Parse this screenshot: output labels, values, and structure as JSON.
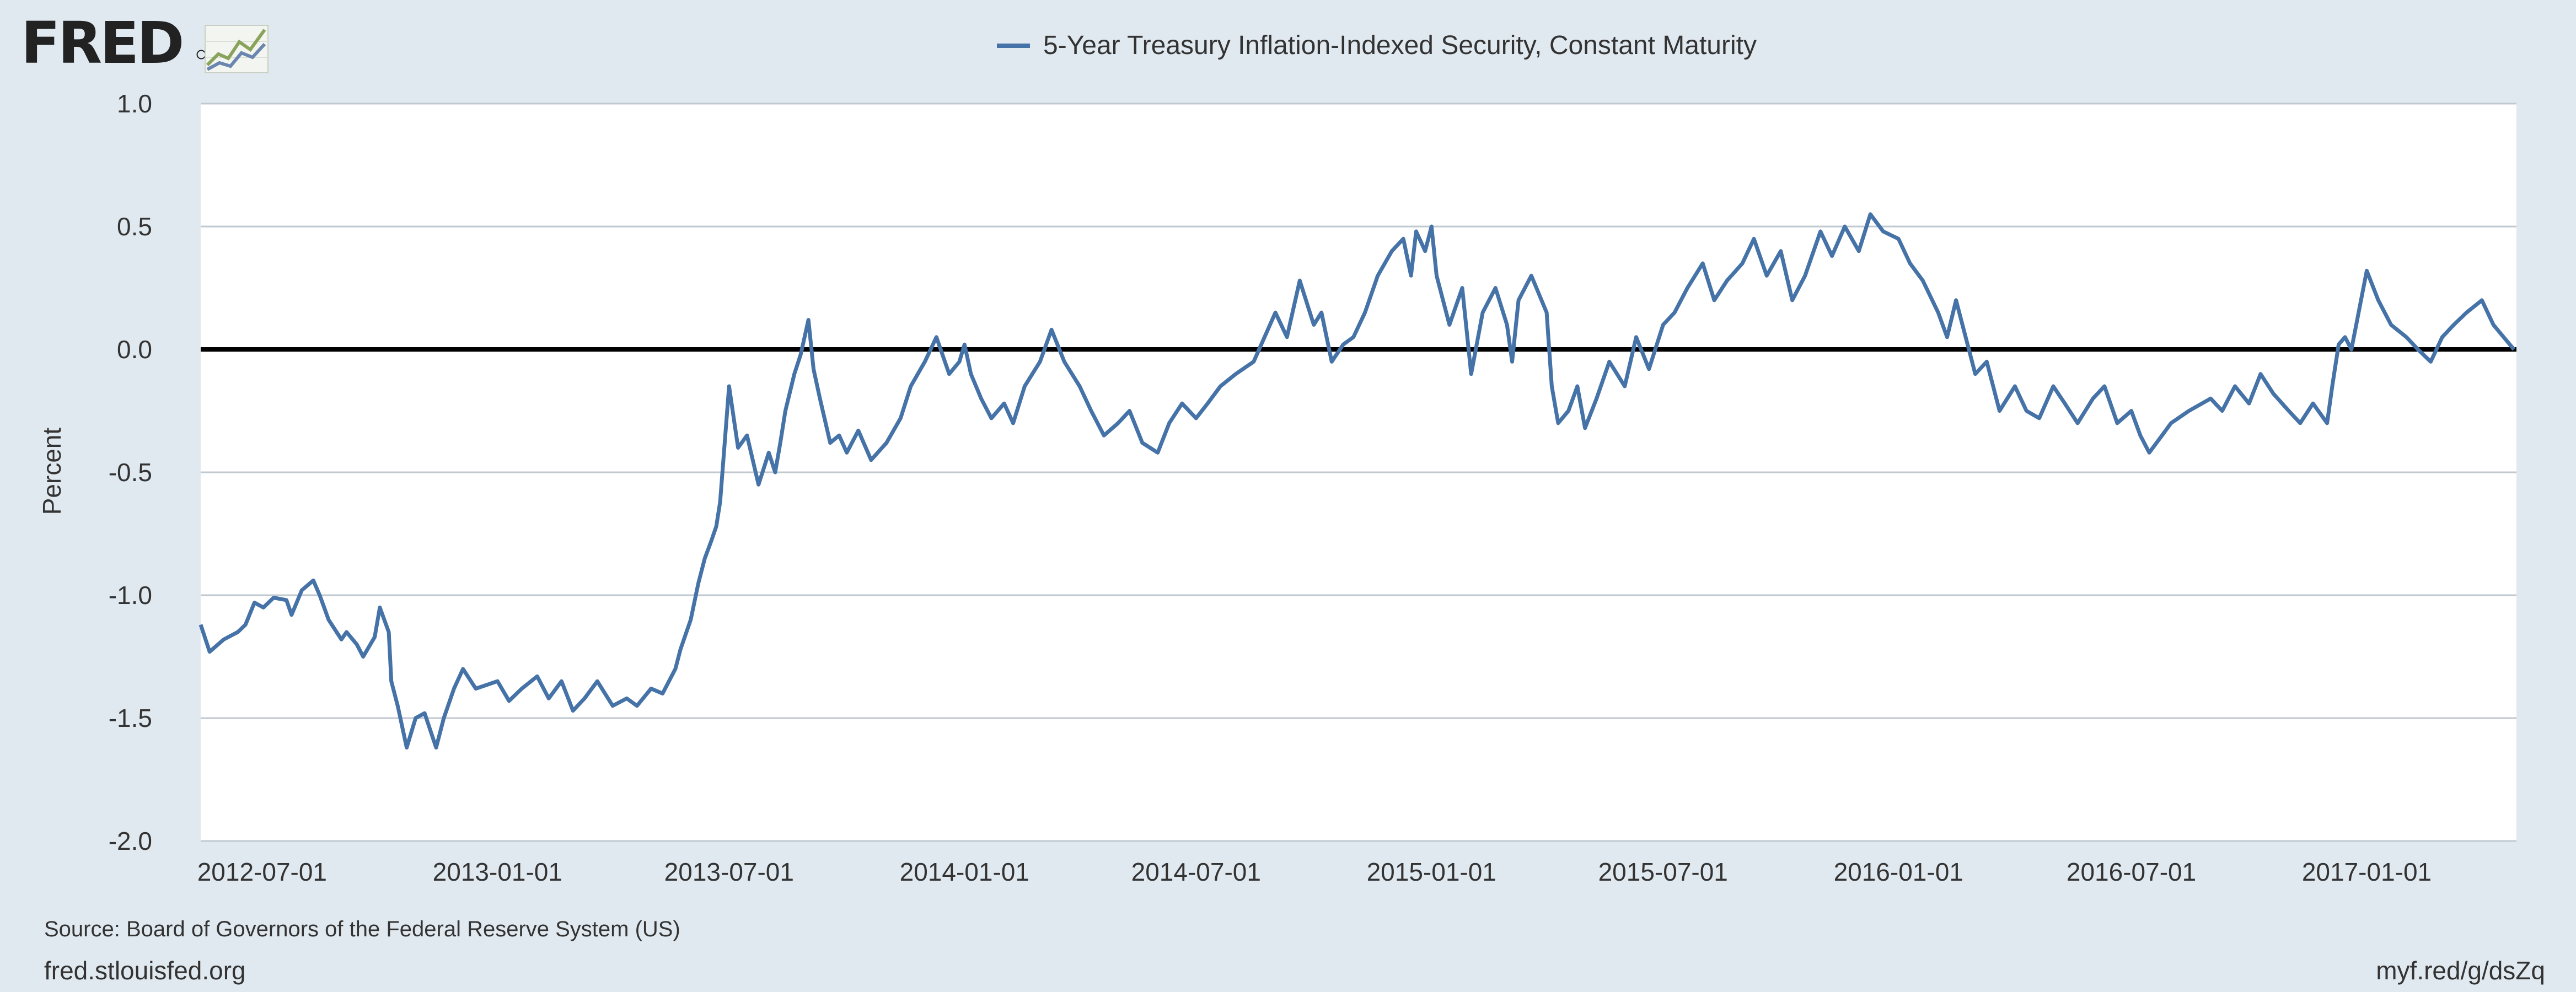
{
  "header": {
    "logo_text": "FRED",
    "legend_label": "5-Year Treasury Inflation-Indexed Security, Constant Maturity"
  },
  "footer": {
    "source": "Source: Board of Governors of the Federal Reserve System (US)",
    "site": "fred.stlouisfed.org",
    "shortlink": "myf.red/g/dsZq"
  },
  "colors": {
    "series": "#4572a7",
    "page_background": "#e1e9f0",
    "plot_background": "#ffffff",
    "gridline": "#c0c8d0",
    "zero_line": "#000000"
  },
  "chart_data": {
    "type": "line",
    "title": "",
    "xlabel": "",
    "ylabel": "Percent",
    "ylim": [
      -2.0,
      1.0
    ],
    "yticks": [
      1.0,
      0.5,
      0.0,
      -0.5,
      -1.0,
      -1.5,
      -2.0
    ],
    "ytick_labels": [
      "1.0",
      "0.5",
      "0.0",
      "-0.5",
      "-1.0",
      "-1.5",
      "-2.0"
    ],
    "xlim": [
      "2012-05-14",
      "2017-04-28"
    ],
    "xticks": [
      "2012-07-01",
      "2013-01-01",
      "2013-07-01",
      "2014-01-01",
      "2014-07-01",
      "2015-01-01",
      "2015-07-01",
      "2016-01-01",
      "2016-07-01",
      "2017-01-01"
    ],
    "grid": true,
    "zero_line": true,
    "legend_position": "top-center",
    "series": [
      {
        "name": "5-Year Treasury Inflation-Indexed Security, Constant Maturity",
        "x": [
          "2012-05-14",
          "2012-05-21",
          "2012-06-01",
          "2012-06-12",
          "2012-06-18",
          "2012-06-25",
          "2012-07-02",
          "2012-07-10",
          "2012-07-20",
          "2012-07-24",
          "2012-08-01",
          "2012-08-10",
          "2012-08-15",
          "2012-08-22",
          "2012-09-01",
          "2012-09-05",
          "2012-09-13",
          "2012-09-18",
          "2012-09-27",
          "2012-10-01",
          "2012-10-08",
          "2012-10-10",
          "2012-10-15",
          "2012-10-22",
          "2012-10-29",
          "2012-11-05",
          "2012-11-14",
          "2012-11-20",
          "2012-11-28",
          "2012-12-05",
          "2012-12-15",
          "2013-01-01",
          "2013-01-10",
          "2013-01-20",
          "2013-02-01",
          "2013-02-10",
          "2013-02-20",
          "2013-03-01",
          "2013-03-10",
          "2013-03-20",
          "2013-04-01",
          "2013-04-12",
          "2013-04-20",
          "2013-05-01",
          "2013-05-10",
          "2013-05-20",
          "2013-05-24",
          "2013-06-01",
          "2013-06-07",
          "2013-06-12",
          "2013-06-17",
          "2013-06-21",
          "2013-06-24",
          "2013-07-01",
          "2013-07-08",
          "2013-07-15",
          "2013-07-24",
          "2013-08-01",
          "2013-08-06",
          "2013-08-10",
          "2013-08-14",
          "2013-08-21",
          "2013-08-26",
          "2013-09-01",
          "2013-09-05",
          "2013-09-10",
          "2013-09-18",
          "2013-09-25",
          "2013-10-01",
          "2013-10-10",
          "2013-10-20",
          "2013-11-01",
          "2013-11-12",
          "2013-11-20",
          "2013-12-01",
          "2013-12-10",
          "2013-12-20",
          "2013-12-28",
          "2014-01-01",
          "2014-01-06",
          "2014-01-14",
          "2014-01-22",
          "2014-02-01",
          "2014-02-08",
          "2014-02-17",
          "2014-03-01",
          "2014-03-10",
          "2014-03-20",
          "2014-04-01",
          "2014-04-10",
          "2014-04-20",
          "2014-05-01",
          "2014-05-10",
          "2014-05-20",
          "2014-06-01",
          "2014-06-10",
          "2014-06-20",
          "2014-07-01",
          "2014-07-10",
          "2014-07-20",
          "2014-08-01",
          "2014-08-15",
          "2014-09-01",
          "2014-09-10",
          "2014-09-20",
          "2014-10-01",
          "2014-10-07",
          "2014-10-15",
          "2014-10-24",
          "2014-11-01",
          "2014-11-10",
          "2014-11-20",
          "2014-12-01",
          "2014-12-10",
          "2014-12-16",
          "2014-12-20",
          "2014-12-27",
          "2015-01-01",
          "2015-01-05",
          "2015-01-15",
          "2015-01-25",
          "2015-02-01",
          "2015-02-10",
          "2015-02-20",
          "2015-03-01",
          "2015-03-05",
          "2015-03-10",
          "2015-03-20",
          "2015-04-01",
          "2015-04-05",
          "2015-04-10",
          "2015-04-18",
          "2015-04-25",
          "2015-05-01",
          "2015-05-10",
          "2015-05-20",
          "2015-06-01",
          "2015-06-10",
          "2015-06-20",
          "2015-07-01",
          "2015-07-10",
          "2015-07-20",
          "2015-08-01",
          "2015-08-10",
          "2015-08-20",
          "2015-09-01",
          "2015-09-10",
          "2015-09-20",
          "2015-10-01",
          "2015-10-10",
          "2015-10-20",
          "2015-11-01",
          "2015-11-10",
          "2015-11-20",
          "2015-12-01",
          "2015-12-10",
          "2015-12-20",
          "2016-01-01",
          "2016-01-10",
          "2016-01-20",
          "2016-02-01",
          "2016-02-08",
          "2016-02-15",
          "2016-03-01",
          "2016-03-10",
          "2016-03-20",
          "2016-04-01",
          "2016-04-10",
          "2016-04-20",
          "2016-05-01",
          "2016-05-10",
          "2016-05-20",
          "2016-06-01",
          "2016-06-10",
          "2016-06-20",
          "2016-07-01",
          "2016-07-08",
          "2016-07-15",
          "2016-07-25",
          "2016-08-01",
          "2016-08-15",
          "2016-09-01",
          "2016-09-10",
          "2016-09-20",
          "2016-10-01",
          "2016-10-10",
          "2016-10-20",
          "2016-11-01",
          "2016-11-10",
          "2016-11-20",
          "2016-12-01",
          "2016-12-05",
          "2016-12-10",
          "2016-12-15",
          "2016-12-20",
          "2017-01-01",
          "2017-01-10",
          "2017-01-20",
          "2017-02-01",
          "2017-02-10",
          "2017-02-20",
          "2017-03-01",
          "2017-03-10",
          "2017-03-20",
          "2017-04-01",
          "2017-04-10",
          "2017-04-18",
          "2017-04-26"
        ],
        "values": [
          -1.12,
          -1.23,
          -1.18,
          -1.15,
          -1.12,
          -1.03,
          -1.05,
          -1.01,
          -1.02,
          -1.08,
          -0.98,
          -0.94,
          -1.0,
          -1.1,
          -1.18,
          -1.15,
          -1.2,
          -1.25,
          -1.17,
          -1.05,
          -1.15,
          -1.35,
          -1.45,
          -1.62,
          -1.5,
          -1.48,
          -1.62,
          -1.5,
          -1.38,
          -1.3,
          -1.38,
          -1.35,
          -1.43,
          -1.38,
          -1.33,
          -1.42,
          -1.35,
          -1.47,
          -1.42,
          -1.35,
          -1.45,
          -1.42,
          -1.45,
          -1.38,
          -1.4,
          -1.3,
          -1.22,
          -1.1,
          -0.95,
          -0.85,
          -0.78,
          -0.72,
          -0.62,
          -0.15,
          -0.4,
          -0.35,
          -0.55,
          -0.42,
          -0.5,
          -0.38,
          -0.25,
          -0.1,
          -0.02,
          0.12,
          -0.08,
          -0.2,
          -0.38,
          -0.35,
          -0.42,
          -0.33,
          -0.45,
          -0.38,
          -0.28,
          -0.15,
          -0.05,
          0.05,
          -0.1,
          -0.05,
          0.02,
          -0.1,
          -0.2,
          -0.28,
          -0.22,
          -0.3,
          -0.15,
          -0.05,
          0.08,
          -0.05,
          -0.15,
          -0.25,
          -0.35,
          -0.3,
          -0.25,
          -0.38,
          -0.42,
          -0.3,
          -0.22,
          -0.28,
          -0.22,
          -0.15,
          -0.1,
          -0.05,
          0.15,
          0.05,
          0.28,
          0.1,
          0.15,
          -0.05,
          0.02,
          0.05,
          0.15,
          0.3,
          0.4,
          0.45,
          0.3,
          0.48,
          0.4,
          0.5,
          0.3,
          0.1,
          0.25,
          -0.1,
          0.15,
          0.25,
          0.1,
          -0.05,
          0.2,
          0.3,
          0.15,
          -0.15,
          -0.3,
          -0.25,
          -0.15,
          -0.32,
          -0.2,
          -0.05,
          -0.15,
          0.05,
          -0.08,
          0.1,
          0.15,
          0.25,
          0.35,
          0.2,
          0.28,
          0.35,
          0.45,
          0.3,
          0.4,
          0.2,
          0.3,
          0.48,
          0.38,
          0.5,
          0.4,
          0.55,
          0.48,
          0.45,
          0.35,
          0.28,
          0.15,
          0.05,
          0.2,
          -0.1,
          -0.05,
          -0.25,
          -0.15,
          -0.25,
          -0.28,
          -0.15,
          -0.22,
          -0.3,
          -0.2,
          -0.15,
          -0.3,
          -0.25,
          -0.35,
          -0.42,
          -0.35,
          -0.3,
          -0.25,
          -0.2,
          -0.25,
          -0.15,
          -0.22,
          -0.1,
          -0.18,
          -0.25,
          -0.3,
          -0.22,
          -0.3,
          -0.15,
          0.02,
          0.05,
          0.0,
          0.32,
          0.2,
          0.1,
          0.05,
          0.0,
          -0.05,
          0.05,
          0.1,
          0.15,
          0.2,
          0.1,
          0.05,
          0.0
        ]
      }
    ]
  }
}
